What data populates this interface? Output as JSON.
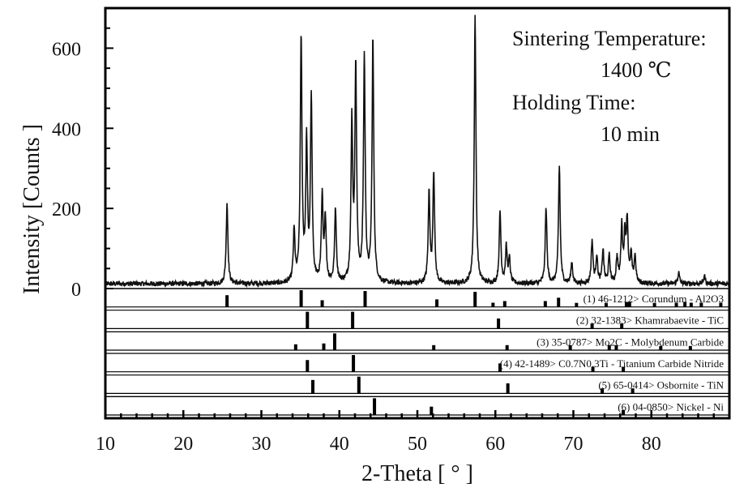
{
  "chart_data": {
    "type": "line",
    "xlabel": "2-Theta [ ° ]",
    "ylabel": "Intensity [Counts ]",
    "xlim": [
      10,
      90
    ],
    "ylim": [
      0,
      700
    ],
    "x_ticks": [
      10,
      20,
      30,
      40,
      50,
      60,
      70,
      80
    ],
    "y_ticks": [
      0,
      200,
      400,
      600
    ],
    "annotations": [
      "Sintering Temperature:",
      "1400 ℃",
      "Holding Time:",
      "10 min"
    ],
    "pattern_peaks": [
      {
        "x": 25.6,
        "y": 215
      },
      {
        "x": 34.2,
        "y": 140
      },
      {
        "x": 35.1,
        "y": 620
      },
      {
        "x": 35.8,
        "y": 355
      },
      {
        "x": 36.4,
        "y": 465
      },
      {
        "x": 37.8,
        "y": 222
      },
      {
        "x": 38.2,
        "y": 168
      },
      {
        "x": 39.5,
        "y": 197
      },
      {
        "x": 41.6,
        "y": 405
      },
      {
        "x": 42.1,
        "y": 550
      },
      {
        "x": 43.2,
        "y": 575
      },
      {
        "x": 44.3,
        "y": 620
      },
      {
        "x": 51.5,
        "y": 238
      },
      {
        "x": 52.1,
        "y": 288
      },
      {
        "x": 57.4,
        "y": 680
      },
      {
        "x": 60.6,
        "y": 190
      },
      {
        "x": 61.4,
        "y": 100
      },
      {
        "x": 61.8,
        "y": 70
      },
      {
        "x": 66.5,
        "y": 200
      },
      {
        "x": 68.2,
        "y": 305
      },
      {
        "x": 69.8,
        "y": 65
      },
      {
        "x": 72.4,
        "y": 118
      },
      {
        "x": 73.0,
        "y": 80
      },
      {
        "x": 73.8,
        "y": 95
      },
      {
        "x": 74.6,
        "y": 80
      },
      {
        "x": 75.6,
        "y": 75
      },
      {
        "x": 76.2,
        "y": 150
      },
      {
        "x": 76.6,
        "y": 120
      },
      {
        "x": 76.9,
        "y": 165
      },
      {
        "x": 77.4,
        "y": 80
      },
      {
        "x": 77.9,
        "y": 80
      },
      {
        "x": 83.5,
        "y": 40
      },
      {
        "x": 86.8,
        "y": 32
      }
    ],
    "reference_patterns": [
      {
        "label": "(1) 46-1212> Corundum - Al2O3",
        "lines": [
          {
            "x": 25.6,
            "h": 0.7
          },
          {
            "x": 35.1,
            "h": 1.0
          },
          {
            "x": 37.8,
            "h": 0.4
          },
          {
            "x": 43.3,
            "h": 0.95
          },
          {
            "x": 52.5,
            "h": 0.45
          },
          {
            "x": 57.4,
            "h": 0.9
          },
          {
            "x": 59.7,
            "h": 0.25
          },
          {
            "x": 61.2,
            "h": 0.35
          },
          {
            "x": 66.4,
            "h": 0.35
          },
          {
            "x": 68.1,
            "h": 0.55
          },
          {
            "x": 70.4,
            "h": 0.2
          },
          {
            "x": 74.2,
            "h": 0.2
          },
          {
            "x": 76.8,
            "h": 0.3
          },
          {
            "x": 77.2,
            "h": 0.3
          },
          {
            "x": 80.4,
            "h": 0.2
          },
          {
            "x": 83.2,
            "h": 0.25
          },
          {
            "x": 84.3,
            "h": 0.3
          },
          {
            "x": 85.1,
            "h": 0.25
          },
          {
            "x": 86.4,
            "h": 0.25
          },
          {
            "x": 88.9,
            "h": 0.25
          }
        ]
      },
      {
        "label": "(2) 32-1383> Khamrabaevite - TiC",
        "lines": [
          {
            "x": 35.9,
            "h": 1.0
          },
          {
            "x": 41.7,
            "h": 1.0
          },
          {
            "x": 60.4,
            "h": 0.6
          },
          {
            "x": 72.4,
            "h": 0.3
          },
          {
            "x": 76.2,
            "h": 0.3
          }
        ]
      },
      {
        "label": "(3) 35-0787> Mo2C - Molybdenum Carbide",
        "lines": [
          {
            "x": 34.4,
            "h": 0.35
          },
          {
            "x": 38.0,
            "h": 0.4
          },
          {
            "x": 39.4,
            "h": 1.0
          },
          {
            "x": 52.1,
            "h": 0.3
          },
          {
            "x": 61.5,
            "h": 0.3
          },
          {
            "x": 69.6,
            "h": 0.3
          },
          {
            "x": 74.6,
            "h": 0.3
          },
          {
            "x": 75.5,
            "h": 0.3
          },
          {
            "x": 81.2,
            "h": 0.25
          },
          {
            "x": 85.0,
            "h": 0.25
          }
        ]
      },
      {
        "label": "(4) 42-1489> C0.7N0.3Ti - Titanium Carbide Nitride",
        "lines": [
          {
            "x": 35.9,
            "h": 0.7
          },
          {
            "x": 41.8,
            "h": 1.0
          },
          {
            "x": 60.6,
            "h": 0.5
          },
          {
            "x": 72.5,
            "h": 0.3
          },
          {
            "x": 76.4,
            "h": 0.3
          }
        ]
      },
      {
        "label": "(5) 65-0414> Osbornite - TiN",
        "lines": [
          {
            "x": 36.6,
            "h": 0.8
          },
          {
            "x": 42.5,
            "h": 1.0
          },
          {
            "x": 61.6,
            "h": 0.6
          },
          {
            "x": 73.7,
            "h": 0.3
          },
          {
            "x": 77.6,
            "h": 0.3
          }
        ]
      },
      {
        "label": "(6) 04-0850> Nickel - Ni",
        "lines": [
          {
            "x": 44.5,
            "h": 1.0
          },
          {
            "x": 51.8,
            "h": 0.5
          },
          {
            "x": 76.4,
            "h": 0.3
          }
        ]
      }
    ],
    "grid": false,
    "legend": "none"
  }
}
